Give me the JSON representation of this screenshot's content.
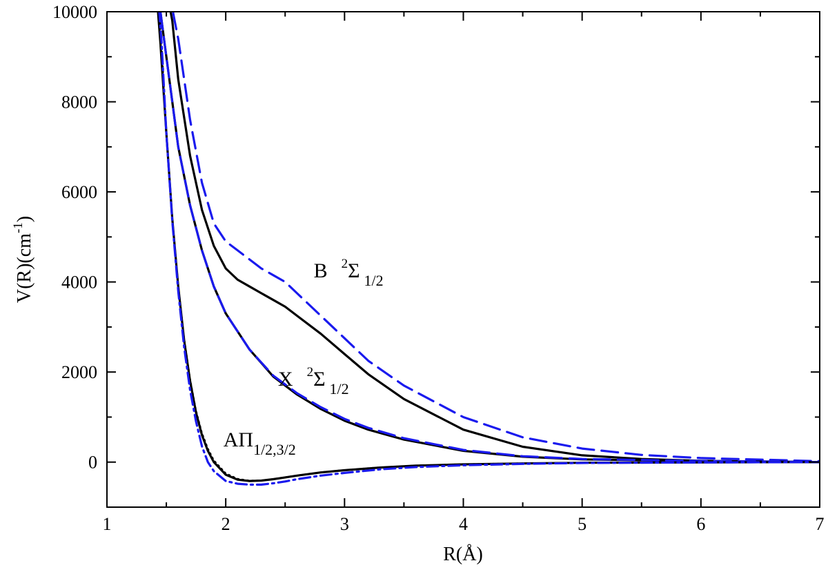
{
  "chart_data": {
    "type": "line",
    "title": "",
    "xlabel": "R(Å)",
    "ylabel_main": "V(R)(cm",
    "ylabel_exp": "-1",
    "ylabel_close": ")",
    "xlim": [
      1,
      7
    ],
    "ylim": [
      -1000,
      10000
    ],
    "x_ticks": [
      "1",
      "2",
      "3",
      "4",
      "5",
      "6",
      "7"
    ],
    "y_ticks": [
      "0",
      "2000",
      "4000",
      "6000",
      "8000",
      "10000"
    ],
    "grid": false,
    "legend": "none",
    "colors": {
      "black": "#000000",
      "blue": "#1a1aee"
    },
    "series": [
      {
        "color": "#000000",
        "dash": "solid",
        "x": [
          1.5,
          1.55,
          1.6,
          1.7,
          1.8,
          1.9,
          2.0,
          2.1,
          2.2,
          2.3,
          2.4,
          2.5,
          2.6,
          2.8,
          3.0,
          3.2,
          3.5,
          4.0,
          4.5,
          5.0,
          5.5,
          6.0,
          7.0
        ],
        "y": [
          10500,
          9800,
          8500,
          6800,
          5600,
          4800,
          4300,
          4050,
          3900,
          3750,
          3600,
          3450,
          3250,
          2850,
          2400,
          1950,
          1400,
          720,
          340,
          150,
          70,
          30,
          0
        ]
      },
      {
        "color": "#1a1aee",
        "dash": "long-dash",
        "x": [
          1.52,
          1.57,
          1.6,
          1.7,
          1.8,
          1.9,
          2.0,
          2.1,
          2.2,
          2.3,
          2.4,
          2.5,
          2.6,
          2.8,
          3.0,
          3.2,
          3.5,
          4.0,
          4.5,
          5.0,
          5.5,
          6.0,
          7.0
        ],
        "y": [
          10500,
          9800,
          9400,
          7600,
          6200,
          5300,
          4900,
          4700,
          4500,
          4300,
          4150,
          4000,
          3750,
          3250,
          2750,
          2250,
          1700,
          1000,
          550,
          300,
          160,
          90,
          20
        ]
      },
      {
        "color": "#000000",
        "dash": "solid",
        "x": [
          1.42,
          1.45,
          1.5,
          1.55,
          1.6,
          1.7,
          1.8,
          1.9,
          2.0,
          2.1,
          2.2,
          2.4,
          2.6,
          2.8,
          3.0,
          3.2,
          3.5,
          4.0,
          4.5,
          5.0,
          6.0,
          7.0
        ],
        "y": [
          10500,
          10000,
          9000,
          8000,
          7000,
          5700,
          4700,
          3900,
          3300,
          2900,
          2500,
          1900,
          1500,
          1180,
          920,
          720,
          500,
          250,
          120,
          60,
          20,
          0
        ]
      },
      {
        "color": "#1a1aee",
        "dash": "long-dash",
        "x": [
          1.42,
          1.45,
          1.5,
          1.55,
          1.6,
          1.7,
          1.8,
          1.9,
          2.0,
          2.1,
          2.2,
          2.4,
          2.6,
          2.8,
          3.0,
          3.2,
          3.5,
          4.0,
          4.5,
          5.0,
          6.0,
          7.0
        ],
        "y": [
          10500,
          10000,
          9000,
          8000,
          7000,
          5700,
          4700,
          3900,
          3300,
          2900,
          2500,
          1920,
          1530,
          1220,
          960,
          760,
          530,
          270,
          130,
          70,
          25,
          0
        ]
      },
      {
        "color": "#000000",
        "dash": "solid",
        "x": [
          1.4,
          1.43,
          1.45,
          1.5,
          1.55,
          1.6,
          1.65,
          1.7,
          1.75,
          1.8,
          1.85,
          1.9,
          2.0,
          2.1,
          2.2,
          2.3,
          2.4,
          2.5,
          2.6,
          2.8,
          3.0,
          3.3,
          3.6,
          4.0,
          4.5,
          5.0,
          6.0,
          7.0
        ],
        "y": [
          10500,
          10000,
          9300,
          7300,
          5400,
          3900,
          2700,
          1800,
          1100,
          600,
          250,
          0,
          -280,
          -390,
          -420,
          -410,
          -380,
          -340,
          -300,
          -230,
          -180,
          -120,
          -80,
          -50,
          -30,
          -15,
          -5,
          0
        ]
      },
      {
        "color": "#000000",
        "dash": "dotted",
        "x": [
          1.41,
          1.44,
          1.46,
          1.5,
          1.55,
          1.6,
          1.65,
          1.7,
          1.75,
          1.8,
          1.85,
          1.9,
          2.0,
          2.1,
          2.2,
          2.3,
          2.4,
          2.5,
          2.6,
          2.8,
          3.0,
          3.3,
          3.6,
          4.0,
          4.5,
          5.0,
          6.0,
          7.0
        ],
        "y": [
          10500,
          10000,
          9300,
          7350,
          5450,
          3950,
          2750,
          1850,
          1150,
          650,
          300,
          40,
          -250,
          -370,
          -410,
          -405,
          -375,
          -335,
          -295,
          -225,
          -175,
          -115,
          -75,
          -45,
          -25,
          -12,
          -4,
          0
        ]
      },
      {
        "color": "#1a1aee",
        "dash": "dash-dot",
        "x": [
          1.41,
          1.44,
          1.46,
          1.5,
          1.55,
          1.6,
          1.65,
          1.7,
          1.75,
          1.8,
          1.85,
          1.9,
          2.0,
          2.1,
          2.2,
          2.3,
          2.4,
          2.5,
          2.6,
          2.8,
          3.0,
          3.3,
          3.6,
          4.0,
          4.5,
          5.0,
          6.0,
          7.0
        ],
        "y": [
          10500,
          10000,
          9300,
          7300,
          5350,
          3800,
          2550,
          1600,
          900,
          350,
          0,
          -200,
          -420,
          -480,
          -500,
          -500,
          -470,
          -430,
          -380,
          -300,
          -240,
          -160,
          -110,
          -70,
          -40,
          -20,
          -8,
          0
        ]
      }
    ],
    "annotations": [
      {
        "base": "B",
        "sup": "2",
        "greek": "Σ",
        "sub": "1/2",
        "x": 2.74,
        "y": 4100
      },
      {
        "base": "X",
        "sup": "2",
        "greek": "Σ",
        "sub": "1/2",
        "x": 2.44,
        "y": 1700
      },
      {
        "base": "A",
        "sup": "",
        "greek": "Π",
        "sub": "1/2,3/2",
        "x": 1.98,
        "y": 350
      }
    ]
  }
}
